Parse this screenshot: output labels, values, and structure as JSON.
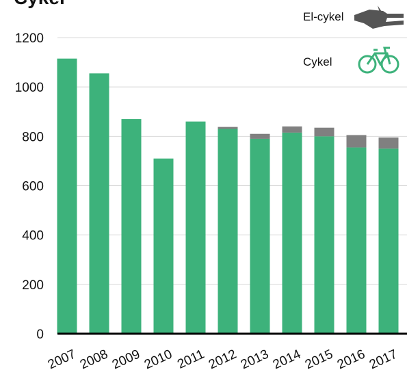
{
  "chart_data": {
    "type": "stacked_bar",
    "title": "Cykel",
    "categories": [
      "2007",
      "2008",
      "2009",
      "2010",
      "2011",
      "2012",
      "2013",
      "2014",
      "2015",
      "2016",
      "2017"
    ],
    "series": [
      {
        "name": "Cykel",
        "color": "#3db27b",
        "values": [
          1115,
          1055,
          870,
          710,
          860,
          830,
          790,
          815,
          800,
          755,
          750
        ]
      },
      {
        "name": "El-cykel",
        "color": "#808080",
        "values": [
          0,
          0,
          0,
          0,
          0,
          8,
          20,
          25,
          35,
          50,
          45
        ]
      }
    ],
    "ylim": [
      0,
      1200
    ],
    "yticks": [
      0,
      200,
      400,
      600,
      800,
      1000,
      1200
    ],
    "grid": true
  }
}
